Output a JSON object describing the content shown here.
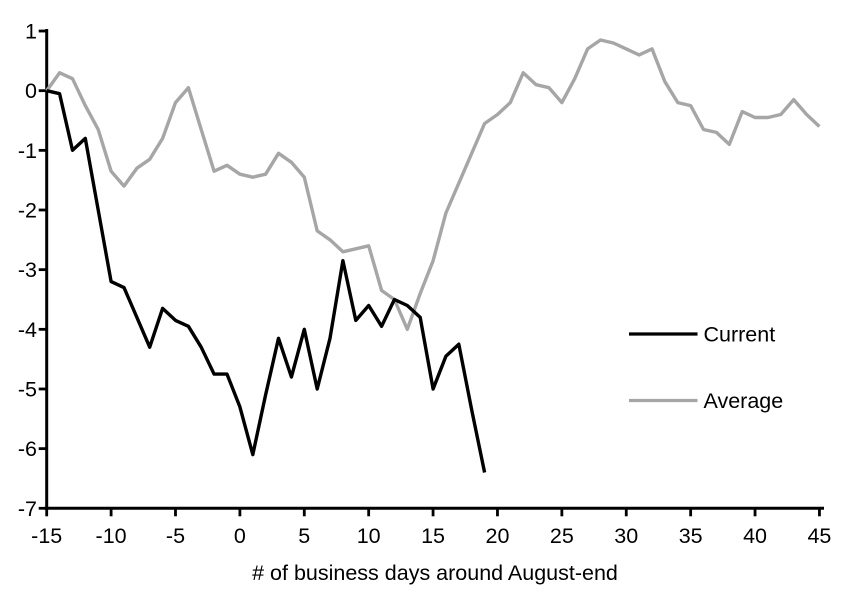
{
  "chart_data": {
    "type": "line",
    "title": "",
    "xlabel": "# of business days around August-end",
    "ylabel": "",
    "xlim": [
      -15,
      45
    ],
    "ylim": [
      -7,
      1
    ],
    "x_ticks": [
      -15,
      -10,
      -5,
      0,
      5,
      10,
      15,
      20,
      25,
      30,
      35,
      40,
      45
    ],
    "y_ticks": [
      1,
      0,
      -1,
      -2,
      -3,
      -4,
      -5,
      -6,
      -7
    ],
    "grid": false,
    "legend_position": "middle-right",
    "series": [
      {
        "name": "Average",
        "color": "#a6a6a6",
        "x_start": -15,
        "x_step": 1,
        "values": [
          0.0,
          0.3,
          0.2,
          -0.25,
          -0.65,
          -1.35,
          -1.6,
          -1.3,
          -1.15,
          -0.8,
          -0.2,
          0.05,
          -0.65,
          -1.35,
          -1.25,
          -1.4,
          -1.45,
          -1.4,
          -1.05,
          -1.2,
          -1.45,
          -2.35,
          -2.5,
          -2.7,
          -2.65,
          -2.6,
          -3.35,
          -3.5,
          -4.0,
          -3.4,
          -2.85,
          -2.05,
          -1.55,
          -1.05,
          -0.55,
          -0.4,
          -0.2,
          0.3,
          0.1,
          0.05,
          -0.2,
          0.2,
          0.7,
          0.85,
          0.8,
          0.7,
          0.6,
          0.7,
          0.15,
          -0.2,
          -0.25,
          -0.65,
          -0.7,
          -0.9,
          -0.35,
          -0.45,
          -0.45,
          -0.4,
          -0.15,
          -0.4,
          -0.6
        ]
      },
      {
        "name": "Current",
        "color": "#000000",
        "x_start": -15,
        "x_step": 1,
        "values": [
          0.0,
          -0.05,
          -1.0,
          -0.8,
          -2.0,
          -3.2,
          -3.3,
          -3.8,
          -4.3,
          -3.65,
          -3.85,
          -3.95,
          -4.3,
          -4.75,
          -4.75,
          -5.3,
          -6.1,
          -5.1,
          -4.15,
          -4.8,
          -4.0,
          -5.0,
          -4.15,
          -2.85,
          -3.85,
          -3.6,
          -3.95,
          -3.5,
          -3.6,
          -3.8,
          -5.0,
          -4.45,
          -4.25,
          -5.35,
          -6.4
        ]
      }
    ],
    "legend": {
      "entries": [
        {
          "label": "Current",
          "color": "#000000"
        },
        {
          "label": "Average",
          "color": "#a6a6a6"
        }
      ]
    }
  },
  "colors": {
    "axis": "#000000",
    "background": "#ffffff",
    "current_line": "#000000",
    "average_line": "#a6a6a6"
  }
}
